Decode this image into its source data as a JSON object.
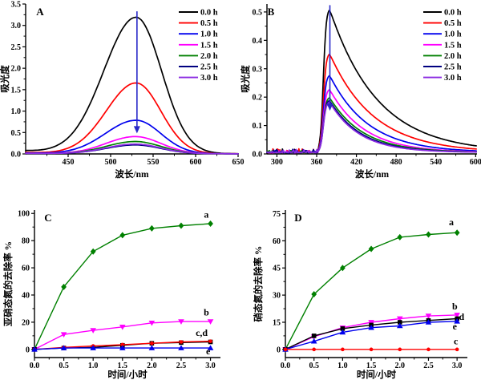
{
  "figure": {
    "background": "#ffffff",
    "arrow_color": "#2828c8",
    "text_color": "#000000"
  },
  "chart_data": [
    {
      "id": "A",
      "type": "line",
      "panel_label": "A",
      "xlabel": "波长/nm",
      "ylabel": "吸光度",
      "xlim": [
        400,
        650
      ],
      "ylim": [
        0,
        3.5
      ],
      "xticks": [
        450,
        500,
        550,
        600,
        650
      ],
      "xtick_labels": [
        "450",
        "500",
        "550",
        "600",
        "650"
      ],
      "xminor_step": 25,
      "yticks": [
        0,
        0.5,
        1,
        1.5,
        2,
        2.5,
        3,
        3.5
      ],
      "ytick_labels": [
        "0.0",
        "0.5",
        "1.0",
        "1.5",
        "2.0",
        "2.5",
        "3.0",
        "3.5"
      ],
      "yminor_step": 0.25,
      "grid": false,
      "legend_position": "top-right",
      "peak_center_nm": 530,
      "legend": [
        {
          "label": "0.0 h",
          "color": "#000000"
        },
        {
          "label": "0.5 h",
          "color": "#ff0000"
        },
        {
          "label": "1.0 h",
          "color": "#0000ee"
        },
        {
          "label": "1.5 h",
          "color": "#ff00ff"
        },
        {
          "label": "2.0 h",
          "color": "#008000"
        },
        {
          "label": "2.5 h",
          "color": "#000080"
        },
        {
          "label": "3.0 h",
          "color": "#8b2be2"
        }
      ],
      "series": [
        {
          "name": "0.0 h",
          "color": "#000000",
          "model": "gauss",
          "peak": 3.18,
          "center": 530,
          "sigma_left": 38,
          "sigma_right": 30,
          "tail": 0.07
        },
        {
          "name": "0.5 h",
          "color": "#ff0000",
          "model": "gauss",
          "peak": 1.65,
          "center": 530,
          "sigma_left": 35,
          "sigma_right": 29,
          "tail": 0.03
        },
        {
          "name": "1.0 h",
          "color": "#0000ee",
          "model": "gauss",
          "peak": 0.78,
          "center": 530,
          "sigma_left": 36,
          "sigma_right": 29,
          "tail": 0.015
        },
        {
          "name": "1.5 h",
          "color": "#ff00ff",
          "model": "gauss",
          "peak": 0.4,
          "center": 529,
          "sigma_left": 34,
          "sigma_right": 30,
          "tail": 0.01
        },
        {
          "name": "2.0 h",
          "color": "#008000",
          "model": "gauss",
          "peak": 0.285,
          "center": 529,
          "sigma_left": 34,
          "sigma_right": 30,
          "tail": 0.01
        },
        {
          "name": "2.5 h",
          "color": "#000080",
          "model": "gauss",
          "peak": 0.205,
          "center": 529,
          "sigma_left": 34,
          "sigma_right": 30,
          "tail": 0.01
        },
        {
          "name": "3.0 h",
          "color": "#8b2be2",
          "model": "gauss",
          "peak": 0.225,
          "center": 529,
          "sigma_left": 34,
          "sigma_right": 30,
          "tail": 0.01
        }
      ],
      "arrow": {
        "x": 531,
        "y_from": 3.33,
        "y_to": 0.48
      }
    },
    {
      "id": "B",
      "type": "line",
      "panel_label": "B",
      "xlabel": "波长/nm",
      "ylabel": "吸光度",
      "xlim": [
        285,
        602
      ],
      "ylim": [
        0,
        0.528
      ],
      "xticks": [
        300,
        360,
        420,
        480,
        540,
        600
      ],
      "xtick_labels": [
        "300",
        "360",
        "420",
        "480",
        "540",
        "600"
      ],
      "xminor_step": 30,
      "yticks": [
        0,
        0.1,
        0.2,
        0.3,
        0.4,
        0.5
      ],
      "ytick_labels": [
        "0.0",
        "0.1",
        "0.2",
        "0.3",
        "0.4",
        "0.5"
      ],
      "yminor_step": 0.05,
      "grid": false,
      "legend_position": "top-right",
      "peak_center_nm": 379,
      "legend": [
        {
          "label": "0.0 h",
          "color": "#000000"
        },
        {
          "label": "0.5 h",
          "color": "#ff0000"
        },
        {
          "label": "1.0 h",
          "color": "#0000ee"
        },
        {
          "label": "1.5 h",
          "color": "#ff00ff"
        },
        {
          "label": "2.0 h",
          "color": "#008000"
        },
        {
          "label": "2.5 h",
          "color": "#000080"
        },
        {
          "label": "3.0 h",
          "color": "#8b2be2"
        }
      ],
      "series": [
        {
          "name": "0.0 h",
          "color": "#000000",
          "model": "peakdecay",
          "peak": 0.51,
          "tau": 72,
          "noise": 0.016
        },
        {
          "name": "0.5 h",
          "color": "#ff0000",
          "model": "peakdecay",
          "peak": 0.352,
          "tau": 66,
          "noise": 0.014
        },
        {
          "name": "1.0 h",
          "color": "#0000ee",
          "model": "peakdecay",
          "peak": 0.275,
          "tau": 58,
          "noise": 0.01
        },
        {
          "name": "1.5 h",
          "color": "#ff00ff",
          "model": "peakdecay",
          "peak": 0.225,
          "tau": 52,
          "noise": 0.01
        },
        {
          "name": "2.0 h",
          "color": "#008000",
          "model": "peakdecay",
          "peak": 0.196,
          "tau": 50,
          "noise": 0.008
        },
        {
          "name": "2.5 h",
          "color": "#000080",
          "model": "peakdecay",
          "peak": 0.186,
          "tau": 47,
          "noise": 0.013
        },
        {
          "name": "3.0 h",
          "color": "#8b2be2",
          "model": "peakdecay",
          "peak": 0.18,
          "tau": 45,
          "noise": 0.012
        }
      ],
      "arrow": {
        "x": 380,
        "y_from": 0.524,
        "y_to": 0.152
      }
    },
    {
      "id": "C",
      "type": "line",
      "panel_label": "C",
      "xlabel": "时间/小时",
      "ylabel": "亚硝态氮的去除率 %",
      "xlim": [
        0,
        3.17
      ],
      "ylim": [
        -6,
        102.5
      ],
      "xticks": [
        0,
        0.5,
        1,
        1.5,
        2,
        2.5,
        3
      ],
      "xtick_labels": [
        "0.0",
        "0.5",
        "1.0",
        "1.5",
        "2.0",
        "2.5",
        "3.0"
      ],
      "xminor_step": 0.25,
      "yticks": [
        0,
        20,
        40,
        60,
        80,
        100
      ],
      "ytick_labels": [
        "0",
        "20",
        "40",
        "60",
        "80",
        "100"
      ],
      "yminor_step": 10,
      "grid": false,
      "x": [
        0,
        0.5,
        1.0,
        1.5,
        2.0,
        2.5,
        3.0
      ],
      "series": [
        {
          "name": "a",
          "color": "#008000",
          "marker": "diamond",
          "values": [
            0,
            46,
            72,
            84,
            89,
            91,
            92.5
          ]
        },
        {
          "name": "b",
          "color": "#ff00ff",
          "marker": "triangle-down",
          "values": [
            0,
            11,
            14,
            16.5,
            19.5,
            20.5,
            20.5
          ]
        },
        {
          "name": "d",
          "color": "#000000",
          "marker": "square",
          "values": [
            0,
            1,
            1.5,
            3,
            4.5,
            5,
            5.5
          ]
        },
        {
          "name": "c",
          "color": "#ff0000",
          "marker": "circle",
          "values": [
            0,
            1.5,
            2.5,
            3.5,
            4.5,
            5.5,
            6
          ]
        },
        {
          "name": "e",
          "color": "#0000ee",
          "marker": "triangle-up",
          "values": [
            0,
            1,
            1,
            1,
            1,
            1,
            1
          ]
        }
      ],
      "annotations": [
        {
          "text": "a",
          "x": 2.93,
          "y": 97
        },
        {
          "text": "b",
          "x": 2.93,
          "y": 25
        },
        {
          "text": "c,d",
          "x": 2.85,
          "y": 10
        },
        {
          "text": "e",
          "x": 2.96,
          "y": -3.6
        }
      ]
    },
    {
      "id": "D",
      "type": "line",
      "panel_label": "D",
      "xlabel": "时间/小时",
      "ylabel": "硝态氮的去除率 %",
      "xlim": [
        0,
        3.18
      ],
      "ylim": [
        -4.5,
        77
      ],
      "xticks": [
        0,
        0.5,
        1,
        1.5,
        2,
        2.5,
        3
      ],
      "xtick_labels": [
        "0.0",
        "0.5",
        "1.0",
        "1.5",
        "2.0",
        "2.5",
        "3.0"
      ],
      "xminor_step": 0.25,
      "yticks": [
        0,
        15,
        30,
        45,
        60,
        75
      ],
      "ytick_labels": [
        "0",
        "15",
        "30",
        "45",
        "60",
        "75"
      ],
      "yminor_step": 7.5,
      "grid": false,
      "x": [
        0,
        0.5,
        1.0,
        1.5,
        2.0,
        2.5,
        3.0
      ],
      "series": [
        {
          "name": "a",
          "color": "#008000",
          "marker": "diamond",
          "values": [
            0,
            30.5,
            45,
            55.5,
            62,
            63.5,
            64.5
          ]
        },
        {
          "name": "b",
          "color": "#ff00ff",
          "marker": "triangle-down",
          "values": [
            0,
            7,
            12,
            15,
            17,
            18.5,
            19
          ]
        },
        {
          "name": "d",
          "color": "#000000",
          "marker": "square",
          "values": [
            0,
            7.5,
            11.5,
            13.5,
            15,
            16,
            17
          ]
        },
        {
          "name": "e",
          "color": "#0000ee",
          "marker": "triangle-up",
          "values": [
            0,
            4.5,
            9.5,
            12,
            13,
            15,
            15.5
          ]
        },
        {
          "name": "c",
          "color": "#ff0000",
          "marker": "circle",
          "values": [
            0,
            0,
            0,
            0,
            0,
            0,
            0
          ]
        }
      ],
      "annotations": [
        {
          "text": "a",
          "x": 2.9,
          "y": 68.5
        },
        {
          "text": "b",
          "x": 2.96,
          "y": 22
        },
        {
          "text": "d",
          "x": 3.08,
          "y": 16.3
        },
        {
          "text": "e",
          "x": 2.96,
          "y": 11
        },
        {
          "text": "c",
          "x": 2.98,
          "y": 2.8
        }
      ]
    }
  ]
}
